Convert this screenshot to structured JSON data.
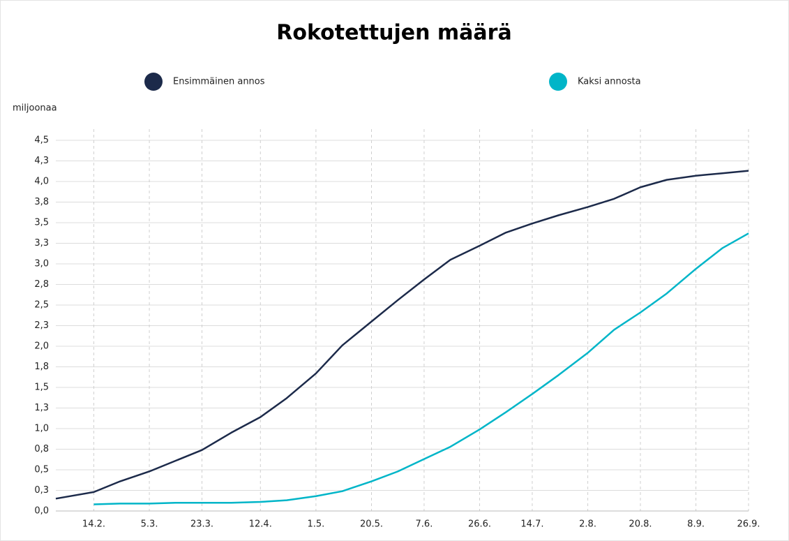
{
  "chart_data": {
    "type": "line",
    "title": "Rokotettujen määrä",
    "y_label": "miljoonaa",
    "x": [
      "1.2.",
      "14.2.",
      "23.2.",
      "5.3.",
      "14.3.",
      "23.3.",
      "2.4.",
      "12.4.",
      "21.4.",
      "1.5.",
      "10.5.",
      "20.5.",
      "29.5.",
      "7.6.",
      "16.6.",
      "26.6.",
      "5.7.",
      "14.7.",
      "23.7.",
      "2.8.",
      "11.8.",
      "20.8.",
      "29.8.",
      "8.9.",
      "17.9.",
      "26.9."
    ],
    "series": [
      {
        "name": "Ensimmäinen annos",
        "color": "#1c2a4a",
        "values": [
          0.15,
          0.23,
          0.36,
          0.48,
          0.61,
          0.74,
          0.95,
          1.14,
          1.37,
          1.67,
          2.01,
          2.3,
          2.56,
          2.81,
          3.05,
          3.22,
          3.38,
          3.49,
          3.59,
          3.69,
          3.79,
          3.93,
          4.02,
          4.07,
          4.1,
          4.13
        ]
      },
      {
        "name": "Kaksi annosta",
        "color": "#00b5c8",
        "values": [
          null,
          0.08,
          0.09,
          0.09,
          0.1,
          0.1,
          0.1,
          0.11,
          0.13,
          0.18,
          0.24,
          0.36,
          0.48,
          0.63,
          0.78,
          0.99,
          1.2,
          1.42,
          1.65,
          1.92,
          2.2,
          2.41,
          2.64,
          2.94,
          3.19,
          3.37
        ]
      }
    ],
    "xlim": [
      "1.2.",
      "26.9."
    ],
    "xticks": [
      "14.2.",
      "5.3.",
      "23.3.",
      "12.4.",
      "1.5.",
      "20.5.",
      "7.6.",
      "26.6.",
      "14.7.",
      "2.8.",
      "20.8.",
      "8.9.",
      "26.9."
    ],
    "ylim": [
      0,
      4.5
    ],
    "yticks": [
      {
        "value": 0,
        "label": "0,0"
      },
      {
        "value": 0.25,
        "label": "0,3"
      },
      {
        "value": 0.5,
        "label": "0,5"
      },
      {
        "value": 0.75,
        "label": "0,8"
      },
      {
        "value": 1,
        "label": "1,0"
      },
      {
        "value": 1.25,
        "label": "1,3"
      },
      {
        "value": 1.5,
        "label": "1,5"
      },
      {
        "value": 1.75,
        "label": "1,8"
      },
      {
        "value": 2,
        "label": "2,0"
      },
      {
        "value": 2.25,
        "label": "2,3"
      },
      {
        "value": 2.5,
        "label": "2,5"
      },
      {
        "value": 2.75,
        "label": "2,8"
      },
      {
        "value": 3,
        "label": "3,0"
      },
      {
        "value": 3.25,
        "label": "3,3"
      },
      {
        "value": 3.5,
        "label": "3,5"
      },
      {
        "value": 3.75,
        "label": "3,8"
      },
      {
        "value": 4,
        "label": "4,0"
      },
      {
        "value": 4.25,
        "label": "4,3"
      },
      {
        "value": 4.5,
        "label": "4,5"
      }
    ],
    "grid": true,
    "legend": "top"
  }
}
